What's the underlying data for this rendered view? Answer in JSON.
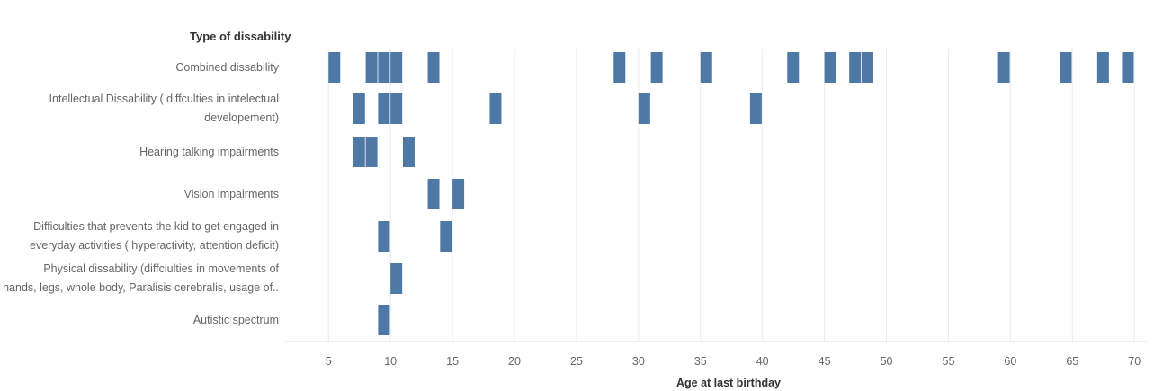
{
  "chart_data": {
    "type": "scatter",
    "mark": "bar",
    "row_header": "Type of dissability",
    "xlabel": "Age at last birthday",
    "xlim": [
      1.5,
      71
    ],
    "x_ticks": [
      5,
      10,
      15,
      20,
      25,
      30,
      35,
      40,
      45,
      50,
      55,
      60,
      65,
      70
    ],
    "grid": true,
    "color": "#4e79a7",
    "categories": [
      "Combined dissability",
      "Intellectual Dissability ( diffculties in intelectual\ndevelopement)",
      "Hearing talking  impairments",
      "Vision impairments",
      "Difficulties that prevents the kid to get engaged in\neveryday activities ( hyperactivity, attention deficit)",
      "Physical dissability  (diffciulties in movements of\nhands, legs, whole body, Paralisis cerebralis, usage of..",
      "Autistic spectrum"
    ],
    "series": [
      {
        "category_index": 0,
        "values": [
          5,
          8,
          9,
          10,
          13,
          28,
          31,
          35,
          42,
          45,
          47,
          48,
          59,
          64,
          67,
          69
        ]
      },
      {
        "category_index": 1,
        "values": [
          7,
          9,
          10,
          18,
          30,
          39
        ]
      },
      {
        "category_index": 2,
        "values": [
          7,
          8,
          11
        ]
      },
      {
        "category_index": 3,
        "values": [
          13,
          15
        ]
      },
      {
        "category_index": 4,
        "values": [
          9,
          14
        ]
      },
      {
        "category_index": 5,
        "values": [
          10
        ]
      },
      {
        "category_index": 6,
        "values": [
          9
        ]
      }
    ]
  }
}
